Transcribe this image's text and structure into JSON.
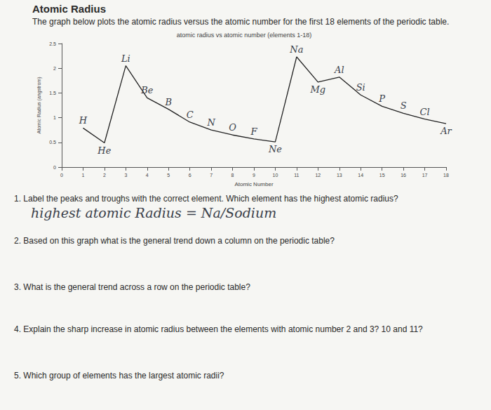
{
  "title": "Atomic Radius",
  "intro": "The graph below plots the atomic radius versus the atomic number for the first 18 elements of the periodic table.",
  "chart_data": {
    "type": "line",
    "title": "atomic radius vs atomic number (elements 1-18)",
    "x_label": "Atomic Number",
    "y_label": "Atomic Radius (angstrom)",
    "x": [
      1,
      2,
      3,
      4,
      5,
      6,
      7,
      8,
      9,
      10,
      11,
      12,
      13,
      14,
      15,
      16,
      17,
      18
    ],
    "values": [
      0.79,
      0.49,
      2.05,
      1.4,
      1.17,
      0.91,
      0.75,
      0.65,
      0.57,
      0.51,
      2.23,
      1.72,
      1.82,
      1.46,
      1.23,
      1.09,
      0.97,
      0.88
    ],
    "annotations": [
      "H",
      "He",
      "Li",
      "Be",
      "B",
      "C",
      "N",
      "O",
      "F",
      "Ne",
      "Na",
      "Mg",
      "Al",
      "Si",
      "P",
      "S",
      "Cl",
      "Ar"
    ],
    "color": "#222222",
    "xlim": [
      0,
      18
    ],
    "xticks": [
      0,
      1,
      2,
      3,
      4,
      5,
      6,
      7,
      8,
      9,
      10,
      11,
      12,
      13,
      14,
      15,
      16,
      17,
      18
    ],
    "ylim": [
      0,
      2.5
    ],
    "yticks": [
      0,
      0.5,
      1,
      1.5,
      2,
      2.5
    ],
    "grid": false
  },
  "questions": [
    {
      "text": "1. Label the peaks and troughs with the correct element. Which element has the highest atomic radius?",
      "answer": "highest atomic Radius = Na/Sodium"
    },
    {
      "text": "2. Based on this graph what is the general trend down a column on the periodic table?"
    },
    {
      "text": "3. What is the general trend across a row on the periodic table?"
    },
    {
      "text": "4. Explain the sharp increase in atomic radius between the elements with atomic number 2 and 3? 10 and 11?"
    },
    {
      "text": "5. Which group of elements has the largest atomic radii?"
    }
  ]
}
